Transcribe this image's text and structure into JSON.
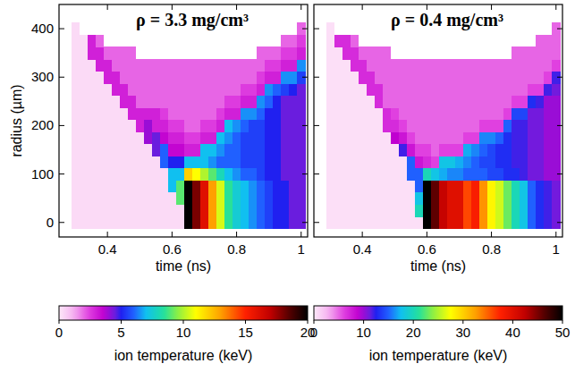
{
  "chart_data": [
    {
      "type": "heatmap",
      "title": "ρ = 3.3 mg/cm³",
      "x_label": "time (ns)",
      "y_label": "radius (µm)",
      "xlim": [
        0.25,
        1.02
      ],
      "ylim": [
        -30,
        450
      ],
      "xticks": [
        0.4,
        0.6,
        0.8,
        1
      ],
      "yticks": [
        0,
        100,
        200,
        300,
        400
      ],
      "x": [
        0.3,
        0.325,
        0.35,
        0.375,
        0.4,
        0.425,
        0.45,
        0.475,
        0.5,
        0.525,
        0.55,
        0.575,
        0.6,
        0.625,
        0.65,
        0.675,
        0.7,
        0.725,
        0.75,
        0.775,
        0.8,
        0.825,
        0.85,
        0.875,
        0.9,
        0.925,
        0.95,
        0.975,
        1
      ],
      "y": [
        0,
        25,
        50,
        75,
        100,
        125,
        150,
        175,
        200,
        225,
        250,
        275,
        300,
        325,
        350,
        375,
        400
      ],
      "cells": [
        [
          0.3,
          0.3,
          0.3,
          0.3,
          0.3,
          0.3,
          0.3,
          0.3,
          0.3,
          0.3,
          0.3,
          0.3,
          0.3,
          0.3,
          20,
          18,
          16,
          13,
          10.5,
          8.5,
          7.5,
          7,
          6.5,
          6,
          5.5,
          5,
          5,
          4.5,
          4.5
        ],
        [
          0.3,
          0.3,
          0.3,
          0.3,
          0.3,
          0.3,
          0.3,
          0.3,
          0.3,
          0.3,
          0.3,
          0.3,
          0.3,
          0.3,
          20,
          18,
          16,
          13,
          10.5,
          8.5,
          7.5,
          7,
          6.5,
          6,
          5.5,
          5,
          5,
          4.5,
          4.5
        ],
        [
          0.3,
          0.3,
          0.3,
          0.3,
          0.3,
          0.3,
          0.3,
          0.3,
          0.3,
          0.3,
          0.3,
          0.3,
          0.3,
          9,
          20,
          18,
          16,
          13,
          10.5,
          8.5,
          7.5,
          7,
          6.5,
          6,
          5.5,
          5,
          5,
          4.5,
          4.5
        ],
        [
          0.3,
          0.3,
          0.3,
          0.3,
          0.3,
          0.3,
          0.3,
          0.3,
          0.3,
          0.3,
          0.3,
          0.3,
          7,
          9,
          20,
          18,
          16,
          13,
          10.5,
          8.5,
          7.5,
          7,
          6.5,
          6,
          5.5,
          5,
          5,
          4.5,
          4.5
        ],
        [
          0.3,
          0.3,
          0.3,
          0.3,
          0.3,
          0.3,
          0.3,
          0.3,
          0.3,
          0.3,
          0.3,
          0.3,
          7,
          7,
          12,
          11,
          10,
          9,
          8,
          7,
          6.5,
          6,
          6,
          5.5,
          5,
          5,
          4.5,
          4.5,
          4.5
        ],
        [
          0.3,
          0.3,
          0.3,
          0.3,
          0.3,
          0.3,
          0.3,
          0.3,
          0.3,
          0.3,
          0.3,
          6,
          5,
          5,
          7,
          7,
          7,
          6.5,
          6,
          6,
          6,
          5.5,
          5.5,
          5.5,
          5,
          5,
          4.5,
          4.5,
          4.5
        ],
        [
          0.3,
          0.3,
          0.3,
          0.3,
          0.3,
          0.3,
          0.3,
          0.3,
          0.3,
          0.3,
          4.5,
          6,
          3.5,
          3.5,
          3,
          3,
          7,
          7,
          6.5,
          6,
          6,
          5.5,
          5.5,
          5.5,
          5,
          5,
          4.5,
          4.5,
          4.5
        ],
        [
          0.3,
          0.3,
          0.3,
          0.3,
          0.3,
          0.3,
          0.3,
          0.3,
          0.3,
          4,
          4.5,
          3.5,
          3,
          3,
          2.5,
          2.5,
          3,
          3,
          7,
          6.5,
          6,
          5.5,
          5.5,
          5.5,
          5,
          5,
          4.5,
          4.5,
          4.5
        ],
        [
          0.3,
          0.3,
          0.3,
          0.3,
          0.3,
          0.3,
          0.3,
          0.3,
          3,
          4,
          3,
          3,
          2.5,
          2.5,
          2,
          2,
          2.5,
          2.5,
          3,
          7,
          6.5,
          6,
          5.5,
          5.5,
          5,
          5,
          4.5,
          4.5,
          4.5
        ],
        [
          0.3,
          0.3,
          0.3,
          0.3,
          0.3,
          0.3,
          0.3,
          3,
          3,
          3,
          3,
          2.5,
          2,
          2,
          2,
          2,
          2,
          2,
          2.5,
          3,
          3,
          6.5,
          6.5,
          6,
          5,
          5,
          4.5,
          4.5,
          4.5
        ],
        [
          0.3,
          0.3,
          0.3,
          0.3,
          0.3,
          0.3,
          3,
          3,
          2,
          2,
          2,
          2,
          2,
          2,
          2,
          2,
          2,
          2,
          2,
          2.5,
          2.5,
          3,
          3,
          6.5,
          6,
          5,
          4.5,
          4.5,
          4.5
        ],
        [
          0.3,
          0.3,
          0.3,
          0.3,
          0.3,
          3,
          3,
          2,
          2,
          2,
          2,
          2,
          2,
          2,
          2,
          2,
          2,
          2,
          2,
          2,
          2,
          2.5,
          2.5,
          3,
          6.5,
          6,
          5.5,
          5,
          4.5
        ],
        [
          0.3,
          0.3,
          0.3,
          0.3,
          3,
          3,
          2,
          2,
          2,
          2,
          2,
          2,
          2,
          2,
          2,
          2,
          2,
          2,
          2,
          2,
          2,
          2,
          2,
          2.5,
          3,
          3,
          6.5,
          6.5,
          5.5
        ],
        [
          0.3,
          0.3,
          0.3,
          3,
          3,
          2,
          2,
          2,
          2,
          2,
          2,
          2,
          2,
          2,
          2,
          2,
          2,
          2,
          2,
          2,
          2,
          2,
          2,
          2,
          2.5,
          2.5,
          3,
          3,
          6.5
        ],
        [
          0.3,
          0.3,
          3,
          3,
          2,
          2,
          2,
          2,
          null,
          null,
          null,
          null,
          null,
          null,
          null,
          null,
          null,
          null,
          null,
          null,
          null,
          null,
          null,
          2,
          2,
          2,
          2.5,
          2.5,
          3
        ],
        [
          0.3,
          0.3,
          3,
          2,
          null,
          null,
          null,
          null,
          null,
          null,
          null,
          null,
          null,
          null,
          null,
          null,
          null,
          null,
          null,
          null,
          null,
          null,
          null,
          null,
          null,
          null,
          2,
          2,
          2.5
        ],
        [
          0.3,
          null,
          null,
          null,
          null,
          null,
          null,
          null,
          null,
          null,
          null,
          null,
          null,
          null,
          null,
          null,
          null,
          null,
          null,
          null,
          null,
          null,
          null,
          null,
          null,
          null,
          null,
          null,
          2
        ]
      ],
      "colorbar": {
        "label": "ion temperature (keV)",
        "range": [
          0,
          20
        ],
        "ticks": [
          0,
          5,
          10,
          15,
          20
        ]
      }
    },
    {
      "type": "heatmap",
      "title": "ρ = 0.4 mg/cm³",
      "x_label": "time (ns)",
      "tick_labels": "x",
      "xlim": [
        0.25,
        1.02
      ],
      "ylim": [
        -30,
        450
      ],
      "xticks": [
        0.4,
        0.6,
        0.8,
        1
      ],
      "yticks": [
        0,
        100,
        200,
        300,
        400
      ],
      "x": [
        0.3,
        0.325,
        0.35,
        0.375,
        0.4,
        0.425,
        0.45,
        0.475,
        0.5,
        0.525,
        0.55,
        0.575,
        0.6,
        0.625,
        0.65,
        0.675,
        0.7,
        0.725,
        0.75,
        0.775,
        0.8,
        0.825,
        0.85,
        0.875,
        0.9,
        0.925,
        0.95,
        0.975,
        1
      ],
      "y": [
        0,
        25,
        50,
        75,
        100,
        125,
        150,
        175,
        200,
        225,
        250,
        275,
        300,
        325,
        350,
        375,
        400
      ],
      "cells": [
        [
          0.5,
          0.5,
          0.5,
          0.5,
          0.5,
          0.5,
          0.5,
          0.5,
          0.5,
          0.5,
          0.5,
          0.5,
          50,
          46,
          42,
          40,
          40,
          36,
          38,
          33,
          28,
          26,
          23,
          20,
          18,
          15,
          13,
          12,
          11
        ],
        [
          0.5,
          0.5,
          0.5,
          0.5,
          0.5,
          0.5,
          0.5,
          0.5,
          0.5,
          0.5,
          0.5,
          20,
          50,
          46,
          42,
          40,
          40,
          36,
          38,
          33,
          28,
          26,
          23,
          20,
          18,
          15,
          13,
          12,
          11
        ],
        [
          0.5,
          0.5,
          0.5,
          0.5,
          0.5,
          0.5,
          0.5,
          0.5,
          0.5,
          0.5,
          0.5,
          18,
          50,
          46,
          42,
          40,
          40,
          36,
          38,
          33,
          28,
          26,
          23,
          20,
          18,
          15,
          13,
          12,
          11
        ],
        [
          0.5,
          0.5,
          0.5,
          0.5,
          0.5,
          0.5,
          0.5,
          0.5,
          0.5,
          0.5,
          0.5,
          15,
          50,
          46,
          42,
          40,
          40,
          36,
          38,
          33,
          28,
          26,
          23,
          20,
          18,
          15,
          13,
          12,
          11
        ],
        [
          0.5,
          0.5,
          0.5,
          0.5,
          0.5,
          0.5,
          0.5,
          0.5,
          0.5,
          0.5,
          15,
          15,
          20,
          18,
          17,
          16,
          16,
          15,
          15,
          15,
          14,
          14,
          13,
          13,
          12,
          11,
          11,
          10,
          10
        ],
        [
          0.5,
          0.5,
          0.5,
          0.5,
          0.5,
          0.5,
          0.5,
          0.5,
          0.5,
          0.5,
          15,
          8,
          7,
          6,
          18,
          18,
          17,
          16,
          15,
          14,
          14,
          13,
          13,
          12,
          12,
          11,
          11,
          10,
          10
        ],
        [
          0.5,
          0.5,
          0.5,
          0.5,
          0.5,
          0.5,
          0.5,
          0.5,
          0.5,
          12,
          8,
          6,
          6,
          5,
          6,
          6,
          6,
          17,
          16,
          15,
          14,
          13,
          13,
          12,
          12,
          11,
          11,
          10,
          10
        ],
        [
          0.5,
          0.5,
          0.5,
          0.5,
          0.5,
          0.5,
          0.5,
          0.5,
          9,
          8,
          6,
          5,
          5,
          5,
          5,
          5,
          5,
          6,
          6,
          16,
          16,
          15,
          13,
          12,
          12,
          11,
          11,
          10,
          10
        ],
        [
          0.5,
          0.5,
          0.5,
          0.5,
          0.5,
          0.5,
          0.5,
          7,
          7,
          6,
          5,
          5,
          5,
          5,
          5,
          5,
          5,
          5,
          5,
          6,
          6,
          6,
          15,
          12,
          12,
          11,
          11,
          10,
          10
        ],
        [
          0.5,
          0.5,
          0.5,
          0.5,
          0.5,
          0.5,
          0.5,
          7,
          6,
          5,
          5,
          5,
          5,
          5,
          5,
          5,
          5,
          5,
          5,
          5,
          5,
          5,
          6,
          14,
          14,
          11,
          11,
          10,
          10
        ],
        [
          0.5,
          0.5,
          0.5,
          0.5,
          0.5,
          0.5,
          7,
          5,
          5,
          5,
          5,
          5,
          5,
          5,
          5,
          5,
          5,
          5,
          5,
          5,
          5,
          5,
          5,
          6,
          6,
          13,
          12,
          10,
          10
        ],
        [
          0.5,
          0.5,
          0.5,
          0.5,
          0.5,
          7,
          7,
          5,
          5,
          5,
          5,
          5,
          5,
          5,
          5,
          5,
          5,
          5,
          5,
          5,
          5,
          5,
          5,
          5,
          5,
          6,
          6,
          12,
          11
        ],
        [
          0.5,
          0.5,
          0.5,
          0.5,
          7,
          7,
          5,
          5,
          5,
          5,
          5,
          5,
          5,
          5,
          5,
          5,
          5,
          5,
          5,
          5,
          5,
          5,
          5,
          5,
          5,
          5,
          5,
          6,
          12
        ],
        [
          0.5,
          0.5,
          0.5,
          7,
          7,
          5,
          5,
          5,
          5,
          5,
          5,
          5,
          5,
          5,
          5,
          5,
          5,
          5,
          5,
          5,
          5,
          5,
          5,
          5,
          5,
          5,
          5,
          5,
          6
        ],
        [
          0.5,
          0.5,
          7,
          7,
          5,
          5,
          5,
          5,
          null,
          null,
          null,
          null,
          null,
          null,
          null,
          null,
          null,
          null,
          null,
          null,
          null,
          null,
          null,
          5,
          5,
          5,
          5,
          5,
          5
        ],
        [
          0.5,
          7,
          7,
          5,
          null,
          null,
          null,
          null,
          null,
          null,
          null,
          null,
          null,
          null,
          null,
          null,
          null,
          null,
          null,
          null,
          null,
          null,
          null,
          null,
          null,
          null,
          5,
          5,
          5
        ],
        [
          0.5,
          null,
          null,
          null,
          null,
          null,
          null,
          null,
          null,
          null,
          null,
          null,
          null,
          null,
          null,
          null,
          null,
          null,
          null,
          null,
          null,
          null,
          null,
          null,
          null,
          null,
          null,
          null,
          5
        ]
      ],
      "colorbar": {
        "label": "ion temperature (keV)",
        "range": [
          0,
          50
        ],
        "ticks": [
          0,
          10,
          20,
          30,
          40,
          50
        ]
      }
    }
  ]
}
